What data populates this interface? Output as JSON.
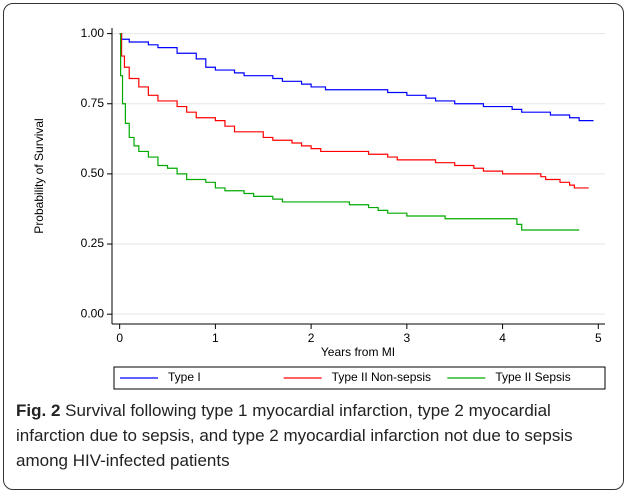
{
  "chart_data": {
    "type": "line",
    "drawstyle": "steps-post",
    "xlabel": "Years from MI",
    "ylabel": "Probability of Survival",
    "xlim": [
      -0.08,
      5.07
    ],
    "ylim": [
      -0.035,
      1.02
    ],
    "xticks": [
      0,
      1,
      2,
      3,
      4,
      5
    ],
    "yticks": [
      {
        "value": 0,
        "label": "0.00"
      },
      0.25,
      {
        "value": 0.5,
        "label": "0.50"
      },
      0.75,
      {
        "value": 1,
        "label": "1.00"
      }
    ],
    "grid": true,
    "legend": "bottom",
    "series": [
      {
        "name": "Type I",
        "color": "#0000ff",
        "x": [
          0,
          0.02,
          0.1,
          0.3,
          0.4,
          0.6,
          0.8,
          0.9,
          1.0,
          1.2,
          1.3,
          1.6,
          1.7,
          1.9,
          2.0,
          2.15,
          2.8,
          3.0,
          3.2,
          3.3,
          3.5,
          3.8,
          4.1,
          4.2,
          4.5,
          4.7,
          4.8,
          4.95
        ],
        "values": [
          1.0,
          0.98,
          0.97,
          0.96,
          0.95,
          0.93,
          0.91,
          0.88,
          0.87,
          0.86,
          0.85,
          0.84,
          0.83,
          0.82,
          0.81,
          0.8,
          0.79,
          0.78,
          0.77,
          0.76,
          0.75,
          0.74,
          0.73,
          0.72,
          0.71,
          0.7,
          0.69,
          0.69
        ]
      },
      {
        "name": "Type II Non-sepsis",
        "color": "#ff0000",
        "x": [
          0,
          0.02,
          0.05,
          0.1,
          0.2,
          0.3,
          0.4,
          0.6,
          0.7,
          0.8,
          1.0,
          1.1,
          1.2,
          1.5,
          1.6,
          1.8,
          1.9,
          2.0,
          2.1,
          2.6,
          2.8,
          2.9,
          3.3,
          3.5,
          3.7,
          3.8,
          4.0,
          4.4,
          4.45,
          4.6,
          4.7,
          4.75,
          4.9
        ],
        "values": [
          1.0,
          0.92,
          0.88,
          0.84,
          0.81,
          0.78,
          0.76,
          0.74,
          0.72,
          0.7,
          0.69,
          0.67,
          0.65,
          0.63,
          0.62,
          0.61,
          0.6,
          0.59,
          0.58,
          0.57,
          0.56,
          0.55,
          0.54,
          0.53,
          0.52,
          0.51,
          0.5,
          0.49,
          0.48,
          0.47,
          0.46,
          0.45,
          0.45
        ]
      },
      {
        "name": "Type II Sepsis",
        "color": "#00aa00",
        "x": [
          0,
          0.01,
          0.03,
          0.06,
          0.1,
          0.15,
          0.2,
          0.3,
          0.4,
          0.5,
          0.6,
          0.7,
          0.9,
          1.0,
          1.1,
          1.3,
          1.4,
          1.6,
          1.7,
          2.4,
          2.6,
          2.7,
          2.8,
          3.0,
          3.4,
          4.15,
          4.2,
          4.8
        ],
        "values": [
          1.0,
          0.85,
          0.75,
          0.68,
          0.63,
          0.6,
          0.58,
          0.56,
          0.53,
          0.52,
          0.5,
          0.48,
          0.47,
          0.45,
          0.44,
          0.43,
          0.42,
          0.41,
          0.4,
          0.39,
          0.38,
          0.37,
          0.36,
          0.35,
          0.34,
          0.32,
          0.3,
          0.3
        ]
      }
    ]
  },
  "caption_label": "Fig. 2",
  "caption": "Survival following type 1 myocardial infarction, type 2 myocardial infarction due to sepsis, and type 2 myocardial infarction not due to sepsis among HIV-infected patients"
}
